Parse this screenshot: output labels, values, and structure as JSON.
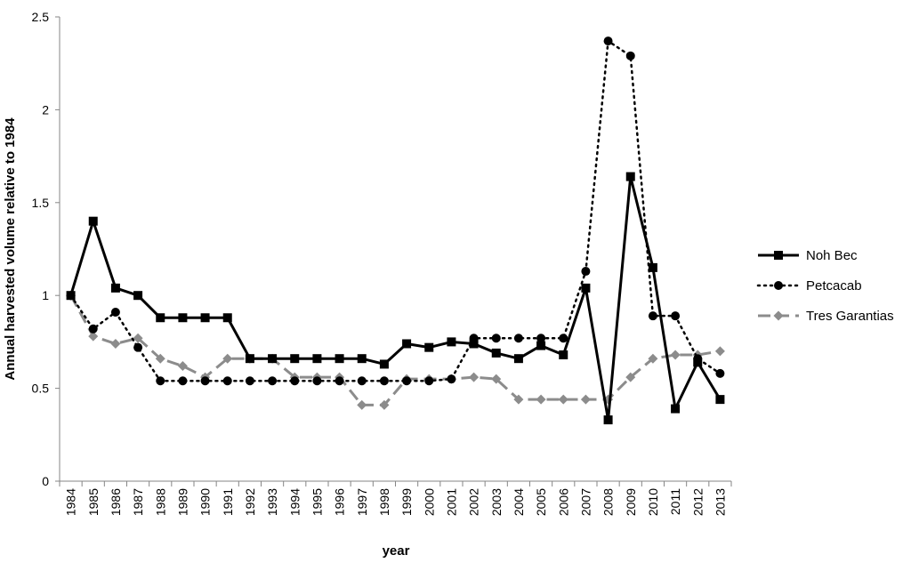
{
  "chart_data": {
    "type": "line",
    "xlabel": "year",
    "ylabel": "Annual harvested volume relative to 1984",
    "ylim": [
      0,
      2.5
    ],
    "yticks": [
      "0",
      "0.5",
      "1",
      "1.5",
      "2",
      "2.5"
    ],
    "categories": [
      "1984",
      "1985",
      "1986",
      "1987",
      "1988",
      "1989",
      "1990",
      "1991",
      "1992",
      "1993",
      "1994",
      "1995",
      "1996",
      "1997",
      "1998",
      "1999",
      "2000",
      "2001",
      "2002",
      "2003",
      "2004",
      "2005",
      "2006",
      "2007",
      "2008",
      "2009",
      "2010",
      "2011",
      "2012",
      "2013"
    ],
    "legend_position": "right",
    "series": [
      {
        "name": "Noh Bec",
        "color": "#000000",
        "style": "solid",
        "marker": "square",
        "values": [
          1.0,
          1.4,
          1.04,
          1.0,
          0.88,
          0.88,
          0.88,
          0.88,
          0.66,
          0.66,
          0.66,
          0.66,
          0.66,
          0.66,
          0.63,
          0.74,
          0.72,
          0.75,
          0.74,
          0.69,
          0.66,
          0.73,
          0.68,
          1.04,
          0.33,
          1.64,
          1.15,
          0.39,
          0.64,
          0.44
        ]
      },
      {
        "name": "Petcacab",
        "color": "#000000",
        "style": "dotted",
        "marker": "circle",
        "values": [
          1.0,
          0.82,
          0.91,
          0.72,
          0.54,
          0.54,
          0.54,
          0.54,
          0.54,
          0.54,
          0.54,
          0.54,
          0.54,
          0.54,
          0.54,
          0.54,
          0.54,
          0.55,
          0.77,
          0.77,
          0.77,
          0.77,
          0.77,
          1.13,
          2.37,
          2.29,
          0.89,
          0.89,
          0.66,
          0.58
        ]
      },
      {
        "name": "Tres Garantias",
        "color": "#8c8c8c",
        "style": "dashed",
        "marker": "diamond",
        "values": [
          1.0,
          0.78,
          0.74,
          0.77,
          0.66,
          0.62,
          0.56,
          0.66,
          0.66,
          0.66,
          0.56,
          0.56,
          0.56,
          0.41,
          0.41,
          0.55,
          0.55,
          0.55,
          0.56,
          0.55,
          0.44,
          0.44,
          0.44,
          0.44,
          0.44,
          0.56,
          0.66,
          0.68,
          0.68,
          0.7
        ]
      }
    ]
  }
}
